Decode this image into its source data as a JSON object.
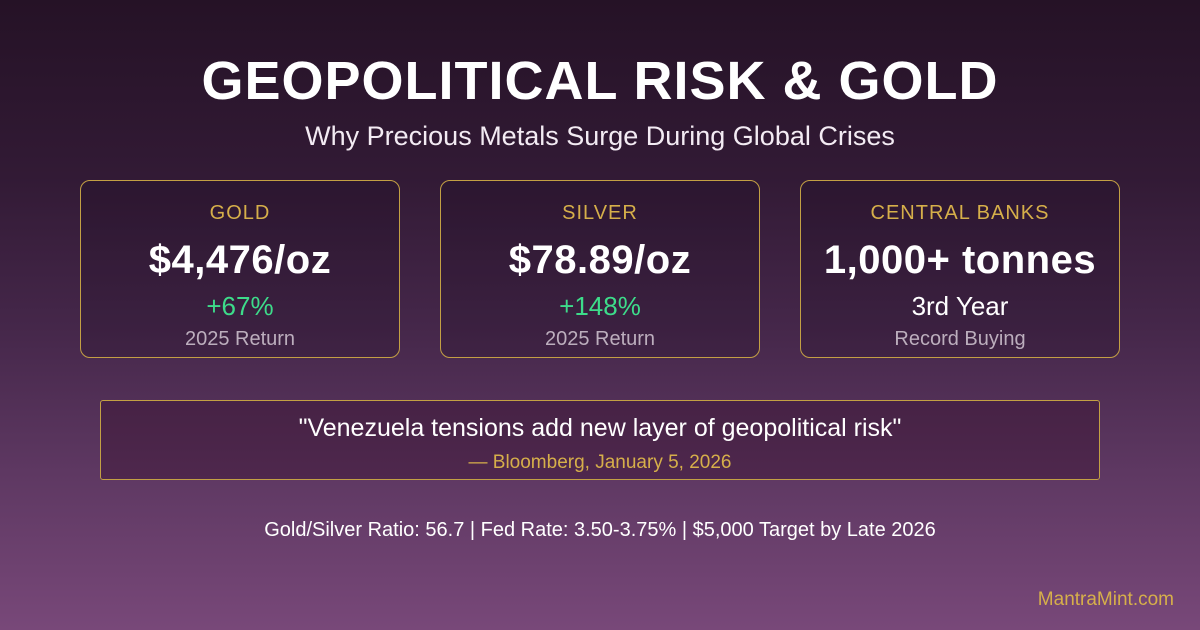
{
  "colors": {
    "background_top": "#251226",
    "background_bottom": "#784879",
    "gold_accent": "#d6af4a",
    "border_gold": "#c3a044",
    "positive_green": "#3ddc8a",
    "muted_gray": "#bcaebd"
  },
  "header": {
    "title": "GEOPOLITICAL RISK & GOLD",
    "subtitle": "Why Precious Metals Surge During Global Crises"
  },
  "cards": [
    {
      "label": "GOLD",
      "value": "$4,476/oz",
      "change": "+67%",
      "caption": "2025 Return"
    },
    {
      "label": "SILVER",
      "value": "$78.89/oz",
      "change": "+148%",
      "caption": "2025 Return"
    },
    {
      "label": "CENTRAL BANKS",
      "value": "1,000+ tonnes",
      "change": "3rd Year",
      "caption": "Record Buying"
    }
  ],
  "quote": {
    "text": "\"Venezuela tensions add new layer of geopolitical risk\"",
    "attribution": "— Bloomberg, January 5, 2026"
  },
  "footer": {
    "stats": "Gold/Silver Ratio: 56.7 | Fed Rate: 3.50-3.75% | $5,000 Target by Late 2026",
    "site": "MantraMint.com"
  }
}
